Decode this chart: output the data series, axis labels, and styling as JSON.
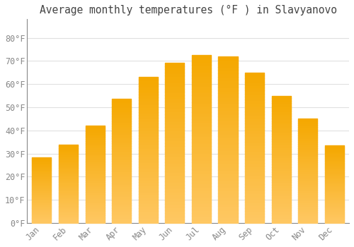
{
  "title": "Average monthly temperatures (°F ) in Slavyanovo",
  "months": [
    "Jan",
    "Feb",
    "Mar",
    "Apr",
    "May",
    "Jun",
    "Jul",
    "Aug",
    "Sep",
    "Oct",
    "Nov",
    "Dec"
  ],
  "values": [
    28.4,
    33.8,
    42.1,
    53.6,
    63.0,
    69.1,
    72.5,
    71.8,
    65.0,
    55.0,
    45.0,
    33.4
  ],
  "bar_color_top": "#F5A800",
  "bar_color_bottom": "#FFD966",
  "background_color": "#FFFFFF",
  "grid_color": "#E0E0E0",
  "tick_label_color": "#888888",
  "title_color": "#444444",
  "spine_color": "#888888",
  "ylim": [
    0,
    88
  ],
  "yticks": [
    0,
    10,
    20,
    30,
    40,
    50,
    60,
    70,
    80
  ],
  "ytick_labels": [
    "0°F",
    "10°F",
    "20°F",
    "30°F",
    "40°F",
    "50°F",
    "60°F",
    "70°F",
    "80°F"
  ],
  "title_fontsize": 10.5,
  "tick_fontsize": 8.5
}
